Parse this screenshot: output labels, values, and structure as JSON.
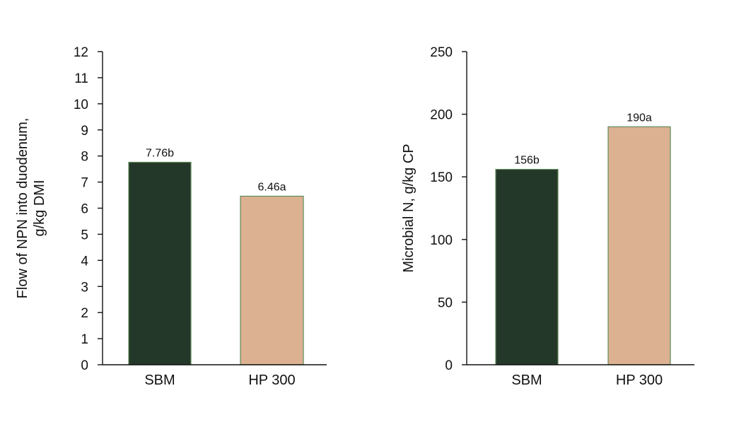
{
  "chart_data": [
    {
      "type": "bar",
      "categories": [
        "SBM",
        "HP 300"
      ],
      "values": [
        7.76,
        6.46
      ],
      "data_labels": [
        "7.76b",
        "6.46a"
      ],
      "ylabel_lines": [
        "Flow of NPN into duodenum,",
        "g/kg DMI"
      ],
      "xlabel": "",
      "ylim": [
        0,
        12
      ],
      "yticks": [
        "0",
        "1",
        "2",
        "3",
        "4",
        "5",
        "6",
        "7",
        "8",
        "9",
        "10",
        "11",
        "12"
      ],
      "yticks_values": [
        0,
        1,
        2,
        3,
        4,
        5,
        6,
        7,
        8,
        9,
        10,
        11,
        12
      ],
      "bar_colors": [
        "#243829",
        "#dcb192"
      ],
      "grid": false,
      "legend": "none"
    },
    {
      "type": "bar",
      "categories": [
        "SBM",
        "HP 300"
      ],
      "values": [
        156,
        190
      ],
      "data_labels": [
        "156b",
        "190a"
      ],
      "ylabel_lines": [
        "Microbial N, g/kg CP"
      ],
      "xlabel": "",
      "ylim": [
        0,
        250
      ],
      "yticks": [
        "0",
        "50",
        "100",
        "150",
        "200",
        "250"
      ],
      "yticks_values": [
        0,
        50,
        100,
        150,
        200,
        250
      ],
      "bar_colors": [
        "#243829",
        "#dcb192"
      ],
      "grid": false,
      "legend": "none"
    }
  ],
  "colors": {
    "bar_outline": "#5f8a5a",
    "axis": "#111111"
  }
}
